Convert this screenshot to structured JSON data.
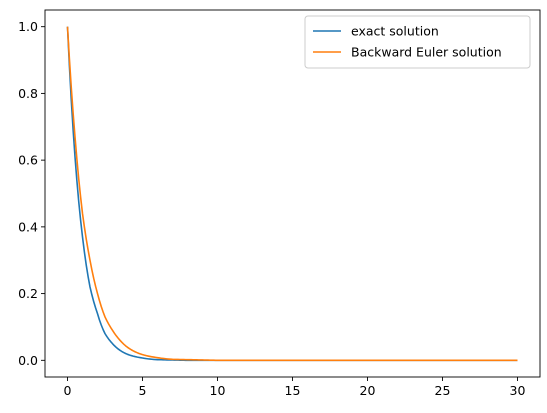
{
  "chart_data": {
    "type": "line",
    "title": "",
    "xlabel": "",
    "ylabel": "",
    "xlim": [
      -1.5,
      31.5
    ],
    "ylim": [
      -0.05,
      1.05
    ],
    "x_ticks": [
      0,
      5,
      10,
      15,
      20,
      25,
      30
    ],
    "x_tick_labels": [
      "0",
      "5",
      "10",
      "15",
      "20",
      "25",
      "30"
    ],
    "y_ticks": [
      0.0,
      0.2,
      0.4,
      0.6,
      0.8,
      1.0
    ],
    "y_tick_labels": [
      "0.0",
      "0.2",
      "0.4",
      "0.6",
      "0.8",
      "1.0"
    ],
    "grid": false,
    "legend_position": "top-right",
    "series": [
      {
        "name": "exact solution",
        "color": "#1f77b4",
        "x": [
          0,
          0.5,
          1,
          1.5,
          2,
          2.5,
          3,
          3.5,
          4,
          5,
          6,
          7,
          8,
          10,
          15,
          20,
          25,
          30
        ],
        "y": [
          1.0,
          0.61,
          0.37,
          0.22,
          0.14,
          0.08,
          0.05,
          0.03,
          0.018,
          0.007,
          0.002,
          0.001,
          0.0,
          0.0,
          0.0,
          0.0,
          0.0,
          0.0
        ]
      },
      {
        "name": "Backward Euler solution",
        "color": "#ff7f0e",
        "x": [
          0,
          0.5,
          1,
          1.5,
          2,
          2.5,
          3,
          3.5,
          4,
          5,
          6,
          7,
          8,
          10,
          15,
          20,
          25,
          30
        ],
        "y": [
          1.0,
          0.67,
          0.44,
          0.3,
          0.2,
          0.13,
          0.09,
          0.06,
          0.039,
          0.017,
          0.008,
          0.003,
          0.002,
          0.0,
          0.0,
          0.0,
          0.0,
          0.0
        ]
      }
    ]
  }
}
